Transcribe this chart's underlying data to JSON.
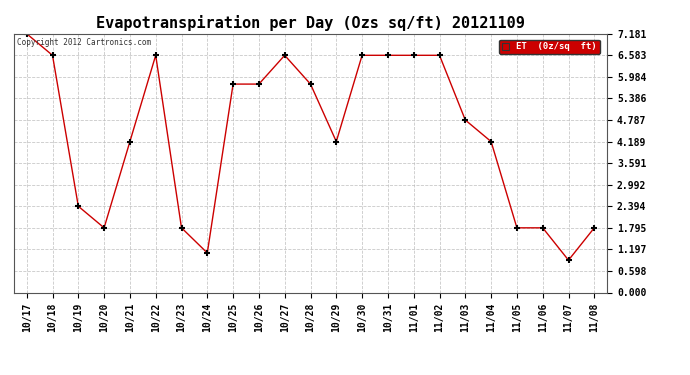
{
  "title": "Evapotranspiration per Day (Ozs sq/ft) 20121109",
  "copyright_text": "Copyright 2012 Cartronics.com",
  "legend_label": "ET  (0z/sq  ft)",
  "x_labels": [
    "10/17",
    "10/18",
    "10/19",
    "10/20",
    "10/21",
    "10/22",
    "10/23",
    "10/24",
    "10/25",
    "10/26",
    "10/27",
    "10/28",
    "10/29",
    "10/30",
    "10/31",
    "11/01",
    "11/02",
    "11/03",
    "11/04",
    "11/05",
    "11/06",
    "11/07",
    "11/08"
  ],
  "y_values": [
    7.181,
    6.583,
    2.394,
    1.795,
    4.189,
    6.583,
    1.795,
    1.098,
    5.784,
    5.784,
    6.583,
    5.784,
    4.189,
    6.583,
    6.583,
    6.583,
    6.583,
    4.787,
    4.189,
    1.795,
    1.795,
    0.897,
    1.795
  ],
  "y_ticks": [
    0.0,
    0.598,
    1.197,
    1.795,
    2.394,
    2.992,
    3.591,
    4.189,
    4.787,
    5.386,
    5.984,
    6.583,
    7.181
  ],
  "ylim": [
    0.0,
    7.181
  ],
  "line_color": "#cc0000",
  "marker_color": "#000000",
  "background_color": "#ffffff",
  "grid_color": "#bbbbbb",
  "title_fontsize": 11,
  "tick_fontsize": 7,
  "legend_bg": "#cc0000",
  "legend_text_color": "#ffffff",
  "fig_width": 6.9,
  "fig_height": 3.75,
  "dpi": 100
}
